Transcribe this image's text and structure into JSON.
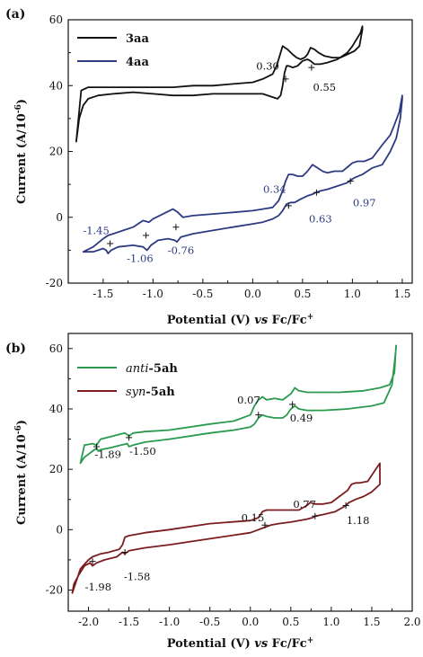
{
  "chart_data": [
    {
      "type": "line",
      "panel_label": "(a)",
      "xlabel": "Potential (V) vs Fc/Fc+",
      "xlabel_parts": [
        "Potential (V) ",
        "vs",
        " Fc/Fc",
        "+"
      ],
      "ylabel": "Current (A/10-6)",
      "ylabel_parts": [
        "Current (A/10",
        "-6",
        ")"
      ],
      "xlim": [
        -1.85,
        1.6
      ],
      "ylim": [
        -20,
        60
      ],
      "xticks": [
        -1.5,
        -1.0,
        -0.5,
        0.0,
        0.5,
        1.0,
        1.5
      ],
      "xtick_labels": [
        "-1.5",
        "-1.0",
        "-0.5",
        "0.0",
        "0.5",
        "1.0",
        "1.5"
      ],
      "yticks": [
        -20,
        0,
        20,
        40,
        60
      ],
      "ytick_labels": [
        "-20",
        "0",
        "20",
        "40",
        "60"
      ],
      "legend_position": "top-left",
      "series": [
        {
          "name": "3aa",
          "name_parts": [
            "3aa"
          ],
          "color": "#111111",
          "x": [
            -1.77,
            -1.74,
            -1.7,
            -1.65,
            -1.55,
            -1.4,
            -1.2,
            -1.0,
            -0.8,
            -0.6,
            -0.4,
            -0.2,
            0.0,
            0.1,
            0.2,
            0.25,
            0.28,
            0.3,
            0.32,
            0.34,
            0.36,
            0.4,
            0.45,
            0.5,
            0.55,
            0.58,
            0.62,
            0.68,
            0.75,
            0.85,
            0.95,
            1.0,
            1.04,
            1.08,
            1.1,
            1.1,
            1.07,
            1.02,
            0.95,
            0.88,
            0.8,
            0.72,
            0.66,
            0.62,
            0.58,
            0.55,
            0.52,
            0.48,
            0.44,
            0.4,
            0.35,
            0.3,
            0.27,
            0.24,
            0.2,
            0.1,
            0.0,
            -0.2,
            -0.4,
            -0.6,
            -0.8,
            -1.0,
            -1.2,
            -1.4,
            -1.55,
            -1.65,
            -1.72,
            -1.77
          ],
          "y": [
            23,
            30,
            34,
            36,
            37,
            37.5,
            38,
            37.5,
            37,
            37,
            37.5,
            37.5,
            37.5,
            37.5,
            36.5,
            36,
            37,
            40,
            44,
            46,
            46,
            45.5,
            46,
            47.5,
            48,
            47.5,
            46.5,
            46.5,
            47,
            48,
            50,
            52,
            54,
            56,
            58,
            57,
            52,
            50.5,
            49.5,
            48.5,
            48.5,
            49,
            50,
            51,
            51.5,
            49.5,
            48.5,
            48,
            48.5,
            49.5,
            51,
            52,
            49,
            46,
            43.5,
            42,
            41,
            40.5,
            40,
            40,
            39.5,
            39.5,
            39.5,
            39.5,
            39.5,
            39.5,
            38.5,
            23
          ]
        },
        {
          "name": "4aa",
          "name_parts": [
            "4aa"
          ],
          "color": "#2e3a82",
          "x": [
            -1.7,
            -1.6,
            -1.5,
            -1.47,
            -1.45,
            -1.42,
            -1.35,
            -1.2,
            -1.1,
            -1.06,
            -1.02,
            -0.95,
            -0.85,
            -0.78,
            -0.76,
            -0.72,
            -0.6,
            -0.4,
            -0.2,
            0.0,
            0.1,
            0.2,
            0.26,
            0.3,
            0.34,
            0.38,
            0.42,
            0.48,
            0.55,
            0.6,
            0.63,
            0.68,
            0.75,
            0.85,
            0.95,
            0.97,
            1.02,
            1.1,
            1.2,
            1.3,
            1.38,
            1.44,
            1.48,
            1.5,
            1.5,
            1.47,
            1.42,
            1.38,
            1.3,
            1.25,
            1.2,
            1.12,
            1.05,
            1.0,
            0.96,
            0.9,
            0.82,
            0.75,
            0.7,
            0.65,
            0.6,
            0.55,
            0.5,
            0.45,
            0.4,
            0.36,
            0.33,
            0.3,
            0.26,
            0.2,
            0.1,
            0.0,
            -0.2,
            -0.4,
            -0.6,
            -0.7,
            -0.75,
            -0.8,
            -0.9,
            -1.0,
            -1.04,
            -1.1,
            -1.2,
            -1.3,
            -1.4,
            -1.45,
            -1.5,
            -1.6,
            -1.7
          ],
          "y": [
            -10.5,
            -10.5,
            -9.5,
            -10,
            -11,
            -10,
            -9,
            -8.5,
            -9,
            -10,
            -8.5,
            -7,
            -6.5,
            -7,
            -7.5,
            -6,
            -5,
            -4,
            -3,
            -2,
            -1.5,
            -0.5,
            0.5,
            2,
            4,
            4.5,
            4.5,
            5.5,
            6.5,
            7,
            7.5,
            8,
            8.5,
            9.5,
            10.5,
            11,
            12,
            13,
            15,
            16,
            20,
            24,
            30,
            36,
            37,
            32,
            28,
            25,
            22,
            20,
            18,
            17,
            17,
            16.5,
            15.5,
            14,
            14,
            13.5,
            14,
            15,
            16,
            14,
            12.5,
            12.5,
            13,
            13,
            11,
            8,
            5,
            3,
            2.5,
            2,
            1.5,
            1,
            0.5,
            0,
            1.5,
            2.5,
            1,
            -0.5,
            -1.5,
            -1,
            -3,
            -4,
            -5,
            -5.5,
            -6.5,
            -9,
            -10.5
          ]
        }
      ],
      "annotations": [
        {
          "text": "0.30",
          "x": 0.15,
          "y": 46,
          "color": "#111111"
        },
        {
          "text": "0.55",
          "x": 0.72,
          "y": 39.5,
          "color": "#111111"
        },
        {
          "text": "0.34",
          "x": 0.22,
          "y": 8.5,
          "color": "#2e3a82"
        },
        {
          "text": "0.63",
          "x": 0.68,
          "y": -0.5,
          "color": "#2e3a82"
        },
        {
          "text": "0.97",
          "x": 1.12,
          "y": 4.5,
          "color": "#2e3a82"
        },
        {
          "text": "-1.45",
          "x": -1.57,
          "y": -4,
          "color": "#2e3a82"
        },
        {
          "text": "-1.06",
          "x": -1.13,
          "y": -12.5,
          "color": "#2e3a82"
        },
        {
          "text": "-0.76",
          "x": -0.72,
          "y": -10,
          "color": "#2e3a82"
        }
      ],
      "markers": [
        {
          "x": 0.33,
          "y": 42
        },
        {
          "x": 0.59,
          "y": 45.5
        },
        {
          "x": 0.36,
          "y": 3.5
        },
        {
          "x": 0.64,
          "y": 7.5
        },
        {
          "x": 0.98,
          "y": 11
        },
        {
          "x": -1.43,
          "y": -8
        },
        {
          "x": -1.07,
          "y": -5.5
        },
        {
          "x": -0.77,
          "y": -3
        }
      ]
    },
    {
      "type": "line",
      "panel_label": "(b)",
      "xlabel": "Potential (V) vs Fc/Fc+",
      "xlabel_parts": [
        "Potential (V) ",
        "vs",
        " Fc/Fc",
        "+"
      ],
      "ylabel": "Current (A/10-6)",
      "ylabel_parts": [
        "Current (A/10",
        "-6",
        ")"
      ],
      "xlim": [
        -2.25,
        2.0
      ],
      "ylim": [
        -27,
        65
      ],
      "xticks": [
        -2.0,
        -1.5,
        -1.0,
        -0.5,
        0.0,
        0.5,
        1.0,
        1.5,
        2.0
      ],
      "xtick_labels": [
        "-2.0",
        "-1.5",
        "-1.0",
        "-0.5",
        "0.0",
        "0.5",
        "1.0",
        "1.5",
        "2.0"
      ],
      "yticks": [
        -20,
        0,
        20,
        40,
        60
      ],
      "ytick_labels": [
        "-20",
        "0",
        "20",
        "40",
        "60"
      ],
      "legend_position": "top-left",
      "series": [
        {
          "name": "anti-5ah",
          "name_parts": [
            "anti",
            "-5ah"
          ],
          "color": "#2a9a4e",
          "x": [
            -2.1,
            -2.05,
            -1.95,
            -1.9,
            -1.88,
            -1.85,
            -1.75,
            -1.6,
            -1.52,
            -1.5,
            -1.45,
            -1.3,
            -1.0,
            -0.5,
            -0.2,
            0.0,
            0.05,
            0.1,
            0.15,
            0.2,
            0.3,
            0.4,
            0.45,
            0.5,
            0.55,
            0.6,
            0.7,
            0.9,
            1.2,
            1.5,
            1.65,
            1.75,
            1.8,
            1.8,
            1.78,
            1.72,
            1.6,
            1.4,
            1.1,
            0.9,
            0.7,
            0.6,
            0.55,
            0.5,
            0.45,
            0.4,
            0.3,
            0.2,
            0.15,
            0.1,
            0.05,
            0.0,
            -0.2,
            -0.5,
            -1.0,
            -1.3,
            -1.45,
            -1.5,
            -1.55,
            -1.7,
            -1.85,
            -1.9,
            -1.95,
            -2.05,
            -2.1
          ],
          "y": [
            22,
            24,
            26,
            27,
            26,
            26.5,
            27,
            28,
            28.5,
            27.5,
            28,
            29,
            30,
            32,
            33,
            34,
            35,
            37,
            38,
            37.5,
            37,
            37,
            38,
            40,
            41,
            40,
            39.5,
            39.5,
            40,
            41,
            42,
            48,
            60,
            61,
            52,
            48,
            47,
            46,
            45.5,
            45.5,
            45.5,
            46,
            47,
            45,
            44,
            43,
            43.5,
            43,
            44,
            43,
            41,
            38,
            36,
            35,
            33,
            32.5,
            32,
            31,
            32,
            31,
            30,
            28,
            28.5,
            28,
            22
          ]
        },
        {
          "name": "syn-5ah",
          "name_parts": [
            "syn",
            "-5ah"
          ],
          "color": "#7b1d20",
          "x": [
            -2.2,
            -2.18,
            -2.12,
            -2.05,
            -1.98,
            -1.95,
            -1.9,
            -1.8,
            -1.65,
            -1.58,
            -1.55,
            -1.5,
            -1.3,
            -1.0,
            -0.5,
            0.0,
            0.1,
            0.15,
            0.2,
            0.25,
            0.35,
            0.5,
            0.7,
            0.77,
            0.8,
            0.9,
            1.05,
            1.15,
            1.18,
            1.22,
            1.3,
            1.4,
            1.5,
            1.6,
            1.6,
            1.55,
            1.45,
            1.35,
            1.3,
            1.25,
            1.2,
            1.1,
            1.0,
            0.9,
            0.8,
            0.74,
            0.7,
            0.6,
            0.5,
            0.3,
            0.2,
            0.15,
            0.1,
            0.05,
            0.0,
            -0.5,
            -1.0,
            -1.3,
            -1.5,
            -1.55,
            -1.58,
            -1.62,
            -1.75,
            -1.85,
            -1.9,
            -1.95,
            -2.0,
            -2.1,
            -2.2
          ],
          "y": [
            -21,
            -18,
            -15,
            -12,
            -11,
            -12,
            -11,
            -10,
            -9,
            -7.5,
            -8,
            -7,
            -6,
            -5,
            -3,
            -1,
            0,
            0.5,
            1,
            1.5,
            2,
            2.5,
            3.5,
            4,
            4.5,
            5,
            6,
            7.5,
            8,
            9,
            10,
            11,
            12.5,
            15,
            22,
            20,
            16,
            15.5,
            15.5,
            15,
            13,
            11,
            9,
            8.5,
            8.5,
            9,
            8,
            6.5,
            6.5,
            6.5,
            6.5,
            6,
            4,
            3.5,
            3,
            2,
            0,
            -1,
            -2,
            -2.5,
            -5,
            -6.5,
            -7.5,
            -8,
            -8.5,
            -9,
            -10,
            -13,
            -21
          ]
        }
      ],
      "annotations": [
        {
          "text": "0.07",
          "x": -0.02,
          "y": 43,
          "color": "#111111"
        },
        {
          "text": "0.49",
          "x": 0.63,
          "y": 37,
          "color": "#111111"
        },
        {
          "text": "-1.89",
          "x": -1.76,
          "y": 25,
          "color": "#111111"
        },
        {
          "text": "-1.50",
          "x": -1.33,
          "y": 26,
          "color": "#111111"
        },
        {
          "text": "0.15",
          "x": 0.03,
          "y": 4,
          "color": "#111111"
        },
        {
          "text": "0.77",
          "x": 0.67,
          "y": 8.5,
          "color": "#111111"
        },
        {
          "text": "1.18",
          "x": 1.33,
          "y": 3,
          "color": "#111111"
        },
        {
          "text": "-1.98",
          "x": -1.88,
          "y": -19,
          "color": "#111111"
        },
        {
          "text": "-1.58",
          "x": -1.4,
          "y": -15.5,
          "color": "#111111"
        }
      ],
      "markers": [
        {
          "x": 0.1,
          "y": 38
        },
        {
          "x": 0.52,
          "y": 41.5
        },
        {
          "x": -1.9,
          "y": 27.5
        },
        {
          "x": -1.5,
          "y": 30.5
        },
        {
          "x": 0.18,
          "y": 1.5
        },
        {
          "x": 0.8,
          "y": 4.5
        },
        {
          "x": 1.18,
          "y": 8
        },
        {
          "x": -1.95,
          "y": -10.5
        },
        {
          "x": -1.55,
          "y": -7.5
        }
      ]
    }
  ]
}
